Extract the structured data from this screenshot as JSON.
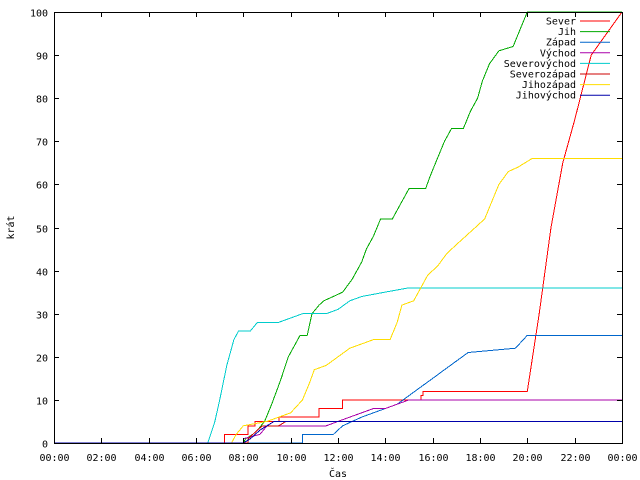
{
  "chart_data": {
    "type": "line",
    "title": "",
    "xlabel": "Čas",
    "ylabel": "krát",
    "x_unit": "hours",
    "xlim": [
      0,
      24
    ],
    "ylim": [
      0,
      100
    ],
    "xticks": [
      {
        "value": 0,
        "label": "00:00"
      },
      {
        "value": 2,
        "label": "02:00"
      },
      {
        "value": 4,
        "label": "04:00"
      },
      {
        "value": 6,
        "label": "06:00"
      },
      {
        "value": 8,
        "label": "08:00"
      },
      {
        "value": 10,
        "label": "10:00"
      },
      {
        "value": 12,
        "label": "12:00"
      },
      {
        "value": 14,
        "label": "14:00"
      },
      {
        "value": 16,
        "label": "16:00"
      },
      {
        "value": 18,
        "label": "18:00"
      },
      {
        "value": 20,
        "label": "20:00"
      },
      {
        "value": 22,
        "label": "22:00"
      },
      {
        "value": 24,
        "label": "00:00"
      }
    ],
    "yticks": [
      {
        "value": 0,
        "label": "0"
      },
      {
        "value": 10,
        "label": "10"
      },
      {
        "value": 20,
        "label": "20"
      },
      {
        "value": 30,
        "label": "30"
      },
      {
        "value": 40,
        "label": "40"
      },
      {
        "value": 50,
        "label": "50"
      },
      {
        "value": 60,
        "label": "60"
      },
      {
        "value": 70,
        "label": "70"
      },
      {
        "value": 80,
        "label": "80"
      },
      {
        "value": 90,
        "label": "90"
      },
      {
        "value": 100,
        "label": "100"
      }
    ],
    "grid": false,
    "legend_position": "top-right",
    "series": [
      {
        "name": "Sever",
        "color": "#ff0000",
        "points": [
          [
            0,
            0
          ],
          [
            7.2,
            0
          ],
          [
            7.2,
            2
          ],
          [
            8.2,
            2
          ],
          [
            8.2,
            4
          ],
          [
            8.5,
            4
          ],
          [
            8.5,
            5
          ],
          [
            9.5,
            5
          ],
          [
            9.5,
            6
          ],
          [
            11.2,
            6
          ],
          [
            11.2,
            8
          ],
          [
            12.2,
            8
          ],
          [
            12.2,
            10
          ],
          [
            15.5,
            10
          ],
          [
            15.5,
            11
          ],
          [
            15.6,
            11
          ],
          [
            15.6,
            12
          ],
          [
            20.0,
            12
          ],
          [
            20.5,
            30
          ],
          [
            21.0,
            50
          ],
          [
            21.5,
            65
          ],
          [
            22.0,
            75
          ],
          [
            22.7,
            90
          ],
          [
            24,
            100
          ]
        ]
      },
      {
        "name": "Jih",
        "color": "#00aa00",
        "points": [
          [
            0,
            0
          ],
          [
            8.0,
            0
          ],
          [
            8.1,
            1
          ],
          [
            8.4,
            2
          ],
          [
            8.6,
            3
          ],
          [
            8.9,
            5
          ],
          [
            9.2,
            9
          ],
          [
            9.4,
            12
          ],
          [
            9.6,
            15
          ],
          [
            9.9,
            20
          ],
          [
            10.2,
            23
          ],
          [
            10.4,
            25
          ],
          [
            10.7,
            25
          ],
          [
            10.9,
            30
          ],
          [
            11.2,
            32
          ],
          [
            11.4,
            33
          ],
          [
            11.8,
            34
          ],
          [
            12.2,
            35
          ],
          [
            12.6,
            38
          ],
          [
            13.0,
            42
          ],
          [
            13.2,
            45
          ],
          [
            13.5,
            48
          ],
          [
            13.8,
            52
          ],
          [
            14.3,
            52
          ],
          [
            14.6,
            55
          ],
          [
            15.0,
            59
          ],
          [
            15.7,
            59
          ],
          [
            15.9,
            62
          ],
          [
            16.2,
            66
          ],
          [
            16.5,
            70
          ],
          [
            16.8,
            73
          ],
          [
            17.3,
            73
          ],
          [
            17.6,
            77
          ],
          [
            17.9,
            80
          ],
          [
            18.1,
            84
          ],
          [
            18.4,
            88
          ],
          [
            18.8,
            91
          ],
          [
            19.4,
            92
          ],
          [
            19.7,
            96
          ],
          [
            20.0,
            100
          ],
          [
            24,
            100
          ]
        ]
      },
      {
        "name": "Západ",
        "color": "#0066cc",
        "points": [
          [
            0,
            0
          ],
          [
            10.5,
            0
          ],
          [
            10.5,
            2
          ],
          [
            11.8,
            2
          ],
          [
            12.2,
            4
          ],
          [
            13.0,
            6
          ],
          [
            13.5,
            7
          ],
          [
            14.5,
            9
          ],
          [
            15.0,
            11
          ],
          [
            15.5,
            13
          ],
          [
            16.0,
            15
          ],
          [
            16.5,
            17
          ],
          [
            17.0,
            19
          ],
          [
            17.5,
            21
          ],
          [
            19.5,
            22
          ],
          [
            20.0,
            25
          ],
          [
            24,
            25
          ]
        ]
      },
      {
        "name": "Východ",
        "color": "#aa00aa",
        "points": [
          [
            0,
            0
          ],
          [
            8.0,
            0
          ],
          [
            8.0,
            1
          ],
          [
            8.7,
            2
          ],
          [
            9.0,
            4
          ],
          [
            11.5,
            4
          ],
          [
            12.0,
            5
          ],
          [
            12.5,
            6
          ],
          [
            13.0,
            7
          ],
          [
            13.5,
            8
          ],
          [
            14.0,
            8
          ],
          [
            14.5,
            9
          ],
          [
            15.0,
            10
          ],
          [
            24,
            10
          ]
        ]
      },
      {
        "name": "Severovýchod",
        "color": "#00cccc",
        "points": [
          [
            0,
            0
          ],
          [
            6.5,
            0
          ],
          [
            6.8,
            5
          ],
          [
            7.0,
            10
          ],
          [
            7.3,
            18
          ],
          [
            7.6,
            24
          ],
          [
            7.8,
            26
          ],
          [
            8.3,
            26
          ],
          [
            8.6,
            28
          ],
          [
            9.5,
            28
          ],
          [
            10.0,
            29
          ],
          [
            10.5,
            30
          ],
          [
            11.5,
            30
          ],
          [
            12.0,
            31
          ],
          [
            12.5,
            33
          ],
          [
            13.0,
            34
          ],
          [
            14.0,
            35
          ],
          [
            15.0,
            36
          ],
          [
            24,
            36
          ]
        ]
      },
      {
        "name": "Severozápad",
        "color": "#cc0000",
        "points": [
          [
            0,
            0
          ],
          [
            8.2,
            0
          ],
          [
            8.2,
            1
          ],
          [
            8.4,
            2
          ],
          [
            8.6,
            3
          ],
          [
            8.8,
            4
          ],
          [
            9.5,
            4
          ],
          [
            9.8,
            5
          ],
          [
            24,
            5
          ]
        ]
      },
      {
        "name": "Jihozápad",
        "color": "#ffdd00",
        "points": [
          [
            0,
            0
          ],
          [
            7.5,
            0
          ],
          [
            7.7,
            2
          ],
          [
            8.0,
            4
          ],
          [
            9.0,
            5
          ],
          [
            9.5,
            6
          ],
          [
            10.0,
            7
          ],
          [
            10.5,
            10
          ],
          [
            10.8,
            14
          ],
          [
            11.0,
            17
          ],
          [
            11.5,
            18
          ],
          [
            12.0,
            20
          ],
          [
            12.5,
            22
          ],
          [
            13.0,
            23
          ],
          [
            13.5,
            24
          ],
          [
            14.2,
            24
          ],
          [
            14.5,
            28
          ],
          [
            14.7,
            32
          ],
          [
            15.2,
            33
          ],
          [
            15.5,
            36
          ],
          [
            15.8,
            39
          ],
          [
            16.2,
            41
          ],
          [
            16.6,
            44
          ],
          [
            17.0,
            46
          ],
          [
            17.4,
            48
          ],
          [
            17.8,
            50
          ],
          [
            18.2,
            52
          ],
          [
            18.5,
            56
          ],
          [
            18.8,
            60
          ],
          [
            19.2,
            63
          ],
          [
            19.6,
            64
          ],
          [
            20.2,
            66
          ],
          [
            24,
            66
          ]
        ]
      },
      {
        "name": "Jihovýchod",
        "color": "#0000aa",
        "points": [
          [
            0,
            0
          ],
          [
            8.0,
            0
          ],
          [
            8.3,
            1
          ],
          [
            8.5,
            2
          ],
          [
            8.7,
            3
          ],
          [
            9.0,
            4
          ],
          [
            9.3,
            5
          ],
          [
            24,
            5
          ]
        ]
      }
    ]
  }
}
